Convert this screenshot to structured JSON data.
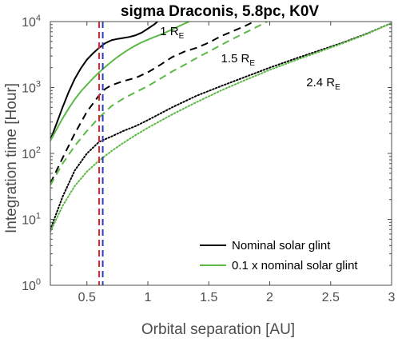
{
  "chart_data": {
    "type": "line",
    "title": "sigma Draconis, 5.8pc, K0V",
    "xlabel": "Orbital separation [AU]",
    "ylabel": "Integration time [Hour]",
    "xlim": [
      0.2,
      3.0
    ],
    "ylim": [
      1,
      10000
    ],
    "yscale": "log",
    "grid": false,
    "legend_location": "bottom-right",
    "x_ticks": [
      0.5,
      1,
      1.5,
      2,
      2.5,
      3
    ],
    "x_tick_labels": [
      "0.5",
      "1",
      "1.5",
      "2",
      "2.5",
      "3"
    ],
    "y_ticks": [
      1,
      10,
      100,
      1000,
      10000
    ],
    "y_tick_labels": [
      {
        "base": "10",
        "exp": "0"
      },
      {
        "base": "10",
        "exp": "1"
      },
      {
        "base": "10",
        "exp": "2"
      },
      {
        "base": "10",
        "exp": "3"
      },
      {
        "base": "10",
        "exp": "4"
      }
    ],
    "legend": [
      {
        "label": "Nominal solar glint",
        "color": "#000000"
      },
      {
        "label": "0.1 x nominal solar glint",
        "color": "#5cb946"
      }
    ],
    "annotations": [
      {
        "text": "1 R",
        "sub": "E",
        "x": 1.1,
        "y": 6200
      },
      {
        "text": "1.5 R",
        "sub": "E",
        "x": 1.6,
        "y": 2400
      },
      {
        "text": "2.4 R",
        "sub": "E",
        "x": 2.3,
        "y": 1050
      }
    ],
    "vertical_lines": [
      {
        "x": 0.6,
        "color": "#e8242a",
        "style": "dashed"
      },
      {
        "x": 0.63,
        "color": "#2b3cbf",
        "style": "dashed"
      }
    ],
    "series": [
      {
        "planet": "1 R_E",
        "glint": "nominal",
        "color": "#000000",
        "dash": "solid",
        "x": [
          0.2,
          0.25,
          0.3,
          0.35,
          0.4,
          0.45,
          0.5,
          0.55,
          0.6,
          0.65,
          0.7,
          0.75,
          0.8,
          0.85,
          0.9,
          0.95,
          1.0,
          1.05,
          1.08
        ],
        "y": [
          160,
          280,
          500,
          850,
          1350,
          1950,
          2650,
          3300,
          4000,
          4700,
          5200,
          5450,
          5650,
          5850,
          6200,
          6800,
          7800,
          9000,
          10000
        ]
      },
      {
        "planet": "1 R_E",
        "glint": "0.1x",
        "color": "#5cb946",
        "dash": "solid",
        "x": [
          0.2,
          0.25,
          0.3,
          0.35,
          0.4,
          0.45,
          0.5,
          0.55,
          0.6,
          0.65,
          0.7,
          0.75,
          0.8,
          0.85,
          0.9,
          0.95,
          1.0,
          1.05,
          1.1,
          1.15,
          1.2,
          1.25,
          1.3,
          1.34
        ],
        "y": [
          155,
          230,
          340,
          480,
          660,
          870,
          1100,
          1380,
          1700,
          2050,
          2450,
          2900,
          3350,
          3850,
          4350,
          4850,
          5300,
          5800,
          6300,
          6900,
          7600,
          8400,
          9300,
          10000
        ]
      },
      {
        "planet": "1.5 R_E",
        "glint": "nominal",
        "color": "#000000",
        "dash": "dashed",
        "x": [
          0.2,
          0.3,
          0.4,
          0.5,
          0.6,
          0.65,
          0.7,
          0.8,
          0.9,
          1.0,
          1.1,
          1.2,
          1.3,
          1.4,
          1.5,
          1.6,
          1.7,
          1.8,
          1.87
        ],
        "y": [
          35,
          85,
          200,
          430,
          760,
          950,
          1080,
          1250,
          1400,
          1700,
          2200,
          2900,
          3500,
          4000,
          4800,
          6000,
          7200,
          8600,
          10000
        ]
      },
      {
        "planet": "1.5 R_E",
        "glint": "0.1x",
        "color": "#5cb946",
        "dash": "dashed",
        "x": [
          0.2,
          0.3,
          0.4,
          0.5,
          0.6,
          0.7,
          0.8,
          0.9,
          1.0,
          1.1,
          1.2,
          1.3,
          1.4,
          1.5,
          1.6,
          1.7,
          1.8,
          1.9,
          1.98
        ],
        "y": [
          33,
          70,
          130,
          220,
          350,
          520,
          680,
          850,
          1050,
          1350,
          1750,
          2200,
          2800,
          3500,
          4400,
          5500,
          6800,
          8400,
          10000
        ]
      },
      {
        "planet": "2.4 R_E",
        "glint": "nominal",
        "color": "#000000",
        "dash": "dotted",
        "x": [
          0.2,
          0.3,
          0.4,
          0.5,
          0.6,
          0.7,
          0.8,
          0.9,
          1.0,
          1.2,
          1.4,
          1.6,
          1.8,
          2.0,
          2.2,
          2.4,
          2.6,
          2.8,
          3.0
        ],
        "y": [
          7,
          22,
          55,
          100,
          150,
          180,
          220,
          260,
          320,
          500,
          750,
          1050,
          1450,
          2000,
          2700,
          3600,
          4800,
          6600,
          9500
        ]
      },
      {
        "planet": "2.4 R_E",
        "glint": "0.1x",
        "color": "#5cb946",
        "dash": "dotted",
        "x": [
          0.2,
          0.3,
          0.4,
          0.5,
          0.6,
          0.7,
          0.8,
          0.9,
          1.0,
          1.2,
          1.4,
          1.6,
          1.8,
          2.0,
          2.2,
          2.4,
          2.6,
          2.8,
          3.0
        ],
        "y": [
          6.5,
          16,
          32,
          53,
          78,
          108,
          145,
          190,
          245,
          390,
          600,
          900,
          1300,
          1850,
          2550,
          3450,
          4700,
          6500,
          9500
        ]
      }
    ]
  }
}
